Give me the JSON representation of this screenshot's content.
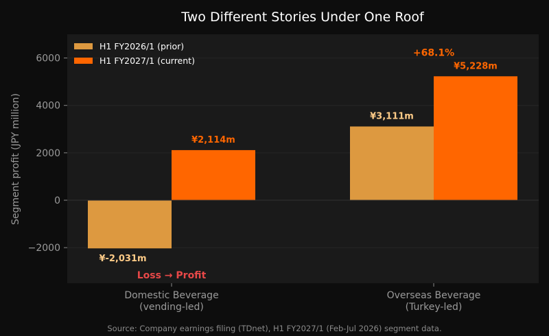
{
  "chart_data": {
    "type": "bar",
    "title": "Two Different Stories Under One Roof",
    "ylabel": "Segment profit (JPY million)",
    "xlabel": "",
    "ylim": [
      -3500,
      7000
    ],
    "yticks": [
      -2000,
      0,
      2000,
      4000,
      6000
    ],
    "ytick_labels": [
      "−2000",
      "0",
      "2000",
      "4000",
      "6000"
    ],
    "grid": true,
    "legend_position": "top-left",
    "categories": [
      [
        "Domestic Beverage",
        "(vending-led)"
      ],
      [
        "Overseas Beverage",
        "(Turkey-led)"
      ]
    ],
    "series": [
      {
        "name": "H1 FY2026/1 (prior)",
        "color": "#dd9940",
        "label_color": "#ffcc88",
        "values": [
          -2031,
          3111
        ],
        "labels": [
          "¥-2,031m",
          "¥3,111m"
        ]
      },
      {
        "name": "H1 FY2027/1 (current)",
        "color": "#ff6600",
        "label_color": "#ff6600",
        "values": [
          2114,
          5228
        ],
        "labels": [
          "¥2,114m",
          "¥5,228m"
        ]
      }
    ],
    "annotations": [
      {
        "text": "Loss → Profit",
        "category": 0,
        "y": -3150,
        "color": "#e84848"
      },
      {
        "text": "+68.1%",
        "category": 1,
        "y": 6230,
        "color": "#ff6600"
      }
    ],
    "source": "Source: Company earnings filing (TDnet), H1 FY2027/1 (Feb-Jul 2026) segment data."
  }
}
